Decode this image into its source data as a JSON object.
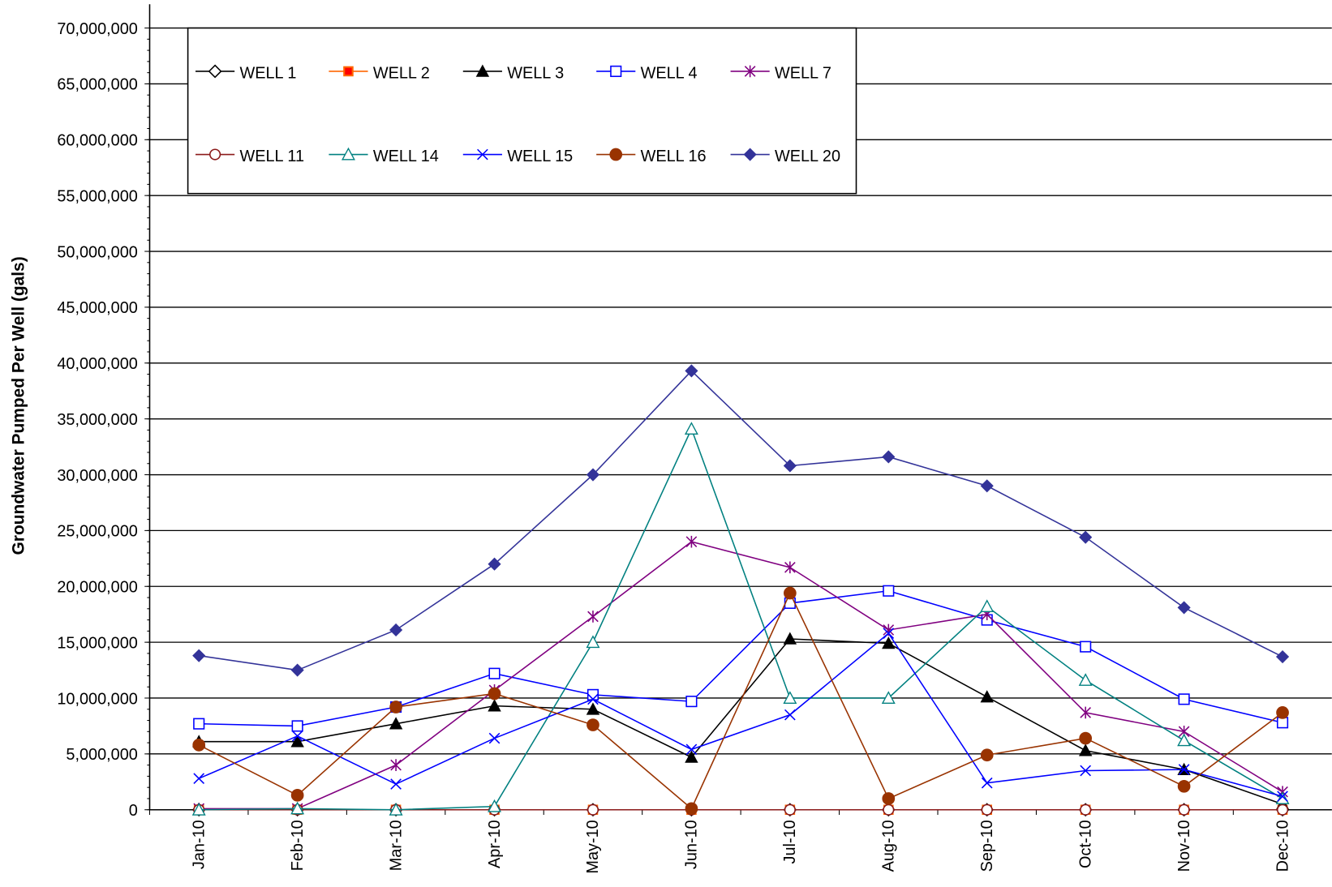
{
  "chart_data": {
    "type": "line",
    "y_label": "Groundwater Pumped Per Well (gals)",
    "categories": [
      "Jan-10",
      "Feb-10",
      "Mar-10",
      "Apr-10",
      "May-10",
      "Jun-10",
      "Jul-10",
      "Aug-10",
      "Sep-10",
      "Oct-10",
      "Nov-10",
      "Dec-10"
    ],
    "ylim": [
      0,
      70000000
    ],
    "yticks": [
      0,
      {
        "value": 5000000,
        "label": "5,000,000"
      },
      {
        "value": 10000000,
        "label": "10,000,000"
      },
      {
        "value": 15000000,
        "label": "15,000,000"
      },
      {
        "value": 20000000,
        "label": "20,000,000"
      },
      {
        "value": 25000000,
        "label": "25,000,000"
      },
      {
        "value": 30000000,
        "label": "30,000,000"
      },
      {
        "value": 35000000,
        "label": "35,000,000"
      },
      {
        "value": 40000000,
        "label": "40,000,000"
      },
      {
        "value": 45000000,
        "label": "45,000,000"
      },
      {
        "value": 50000000,
        "label": "50,000,000"
      },
      {
        "value": 55000000,
        "label": "55,000,000"
      },
      {
        "value": 60000000,
        "label": "60,000,000"
      },
      {
        "value": 65000000,
        "label": "65,000,000"
      },
      {
        "value": 70000000,
        "label": "70,000,000"
      }
    ],
    "grid": true,
    "legend": "top-left",
    "series": [
      {
        "name": "WELL 1",
        "color": "#000000",
        "marker": "diamond-open",
        "values": [
          0,
          0,
          0,
          0,
          0,
          0,
          0,
          0,
          0,
          0,
          0,
          0
        ]
      },
      {
        "name": "WELL 2",
        "color": "#ff6600",
        "marker": "square-filled",
        "values": [
          0,
          0,
          0,
          0,
          0,
          0,
          0,
          0,
          0,
          0,
          0,
          0
        ]
      },
      {
        "name": "WELL 3",
        "color": "#000000",
        "marker": "triangle-filled",
        "values": [
          6100000,
          6100000,
          7700000,
          9300000,
          9000000,
          4700000,
          15300000,
          14900000,
          10100000,
          5300000,
          3600000,
          500000
        ]
      },
      {
        "name": "WELL 4",
        "color": "#0000ff",
        "marker": "square-open",
        "values": [
          7700000,
          7500000,
          9200000,
          12200000,
          10300000,
          9700000,
          18500000,
          19600000,
          17000000,
          14600000,
          9900000,
          7800000
        ]
      },
      {
        "name": "WELL 7",
        "color": "#800080",
        "marker": "star",
        "values": [
          100000,
          100000,
          4000000,
          10700000,
          17300000,
          24000000,
          21700000,
          16100000,
          17500000,
          8700000,
          7000000,
          1600000
        ]
      },
      {
        "name": "WELL 11",
        "color": "#8b1a1a",
        "marker": "circle-open",
        "values": [
          0,
          0,
          0,
          0,
          0,
          0,
          0,
          0,
          0,
          0,
          0,
          0
        ]
      },
      {
        "name": "WELL 14",
        "color": "#008080",
        "marker": "triangle-open",
        "values": [
          0,
          100000,
          0,
          300000,
          15000000,
          34100000,
          10000000,
          10000000,
          18200000,
          11600000,
          6200000,
          1000000
        ]
      },
      {
        "name": "WELL 15",
        "color": "#0000ff",
        "marker": "x",
        "values": [
          2800000,
          6600000,
          2300000,
          6400000,
          9900000,
          5400000,
          8500000,
          15800000,
          2400000,
          3500000,
          3600000,
          1200000
        ]
      },
      {
        "name": "WELL 16",
        "color": "#993300",
        "marker": "circle-filled",
        "values": [
          5800000,
          1300000,
          9200000,
          10400000,
          7600000,
          100000,
          19400000,
          1000000,
          4900000,
          6400000,
          2100000,
          8700000
        ]
      },
      {
        "name": "WELL 20",
        "color": "#333399",
        "marker": "diamond-filled",
        "values": [
          13800000,
          12500000,
          16100000,
          22000000,
          30000000,
          39300000,
          30800000,
          31600000,
          29000000,
          24400000,
          18100000,
          13700000
        ]
      }
    ]
  }
}
